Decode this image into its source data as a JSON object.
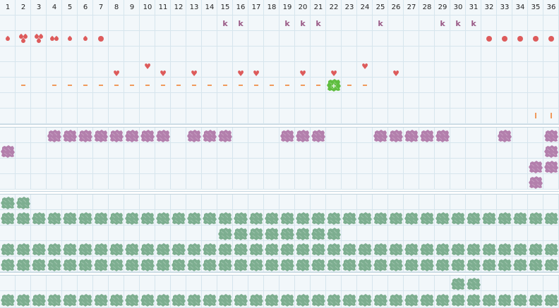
{
  "grid": {
    "columns": [
      "1",
      "2",
      "3",
      "4",
      "5",
      "6",
      "7",
      "8",
      "9",
      "10",
      "11",
      "12",
      "13",
      "14",
      "15",
      "16",
      "17",
      "18",
      "19",
      "20",
      "21",
      "22",
      "23",
      "24",
      "25",
      "26",
      "27",
      "28",
      "29",
      "30",
      "31",
      "32",
      "33",
      "34",
      "35",
      "36"
    ]
  },
  "colors": {
    "cell_bg": "#f2f7fa",
    "grid_line": "#d6e5ed",
    "red": "#dd5b5b",
    "k_purple": "#9a5a86",
    "dash_orange": "#f09a5c",
    "purple_blob": "#b37fac",
    "green_blob": "#7dae90",
    "bright_green": "#5fbe3f"
  },
  "marks": {
    "k_row": {
      "symbol": "k",
      "icon": "letter-k-icon",
      "cols": [
        15,
        16,
        19,
        20,
        21,
        25,
        29,
        30,
        31
      ]
    },
    "drop_row": {
      "icon": "drop-icon",
      "drops": [
        {
          "col": 1,
          "count": 1
        },
        {
          "col": 2,
          "count": 3
        },
        {
          "col": 3,
          "count": 3
        },
        {
          "col": 4,
          "count": 2
        },
        {
          "col": 5,
          "count": 1
        },
        {
          "col": 6,
          "count": 1
        }
      ],
      "dots": [
        7,
        32,
        33,
        34,
        35,
        36
      ]
    },
    "heart_row_high": {
      "icon": "heart-icon",
      "cols": [
        10,
        24
      ]
    },
    "heart_row": {
      "icon": "heart-icon",
      "cols": [
        8,
        11,
        13,
        16,
        17,
        20,
        22,
        26
      ]
    },
    "dash_row": {
      "icon": "dash-icon",
      "cols": [
        2,
        4,
        5,
        6,
        7,
        8,
        9,
        10,
        11,
        12,
        13,
        14,
        15,
        16,
        17,
        18,
        19,
        20,
        21,
        23,
        24
      ]
    },
    "highlight": {
      "icon": "green-blob-plus-icon",
      "col": 22
    },
    "tick_row": {
      "icon": "tick-icon",
      "cols": [
        35,
        36
      ]
    }
  },
  "purple_rows": [
    [
      4,
      5,
      6,
      7,
      8,
      9,
      10,
      11,
      13,
      14,
      15,
      19,
      20,
      21,
      25,
      26,
      27,
      28,
      29,
      33,
      36
    ],
    [
      1,
      36
    ],
    [
      35,
      36
    ],
    [
      35
    ]
  ],
  "green_rows": [
    [
      1,
      2
    ],
    [
      1,
      2,
      3,
      4,
      5,
      6,
      7,
      8,
      9,
      10,
      11,
      12,
      13,
      14,
      15,
      16,
      17,
      18,
      19,
      20,
      21,
      22,
      23,
      24,
      25,
      26,
      27,
      28,
      29,
      30,
      31,
      32,
      33,
      34,
      35,
      36
    ],
    [
      15,
      16,
      17,
      18,
      19,
      20,
      21,
      22
    ],
    [
      1,
      2,
      3,
      4,
      5,
      6,
      7,
      8,
      9,
      10,
      11,
      12,
      13,
      14,
      15,
      16,
      17,
      18,
      19,
      20,
      21,
      22,
      23,
      24,
      25,
      26,
      27,
      28,
      29,
      30,
      31,
      32,
      33,
      34,
      35,
      36
    ],
    [
      1,
      2,
      3,
      4,
      5,
      6,
      7,
      8,
      9,
      10,
      11,
      12,
      13,
      14,
      15,
      16,
      17,
      18,
      19,
      20,
      21,
      22,
      23,
      24,
      25,
      26,
      27,
      28,
      29,
      30,
      31,
      32,
      33,
      34,
      35,
      36
    ],
    [
      30,
      31
    ],
    [
      1,
      2,
      3,
      4,
      5,
      6,
      7,
      8,
      9,
      10,
      11,
      12,
      13,
      14,
      15,
      16,
      17,
      18,
      19,
      20,
      21,
      22,
      23,
      24,
      25,
      26,
      27,
      28,
      29,
      30,
      31,
      32,
      33,
      34,
      35,
      36
    ]
  ]
}
